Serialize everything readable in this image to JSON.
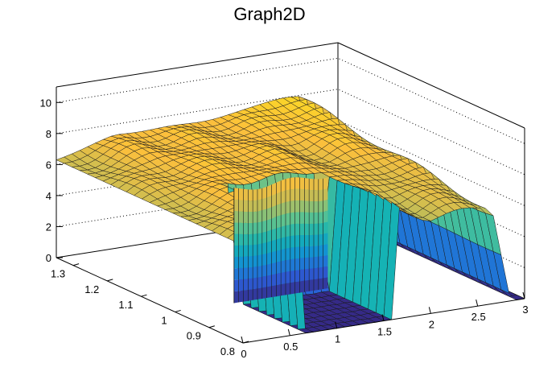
{
  "chart_data": {
    "type": "surface",
    "title": "Graph2D",
    "xlabel": "",
    "ylabel": "",
    "zlabel": "",
    "x_ticks": [
      "0",
      "0.5",
      "1",
      "1.5",
      "2",
      "2.5",
      "3"
    ],
    "y_ticks": [
      "0.8",
      "0.9",
      "1",
      "1.1",
      "1.2",
      "1.3"
    ],
    "z_ticks": [
      "0",
      "2",
      "4",
      "6",
      "8",
      "10"
    ],
    "xlim": [
      0,
      3
    ],
    "ylim": [
      0.8,
      1.35
    ],
    "zlim": [
      0,
      11
    ],
    "grid": true,
    "palette": [
      "#352a87",
      "#2c5dd7",
      "#1390d4",
      "#15b3b4",
      "#5fc38f",
      "#c4bd55",
      "#fcbf3c",
      "#f9e51a"
    ],
    "mesh_color": "#1a1a1a",
    "surface": {
      "x_edges_of_step": [
        0.62,
        1.62
      ],
      "x_collapse": [
        2.6,
        2.85
      ],
      "top_height_at_x0": 6.3,
      "top_height_mid": 7.3,
      "peak_height": 8.0,
      "peak_x": 2.4,
      "floor_height": 0
    }
  }
}
